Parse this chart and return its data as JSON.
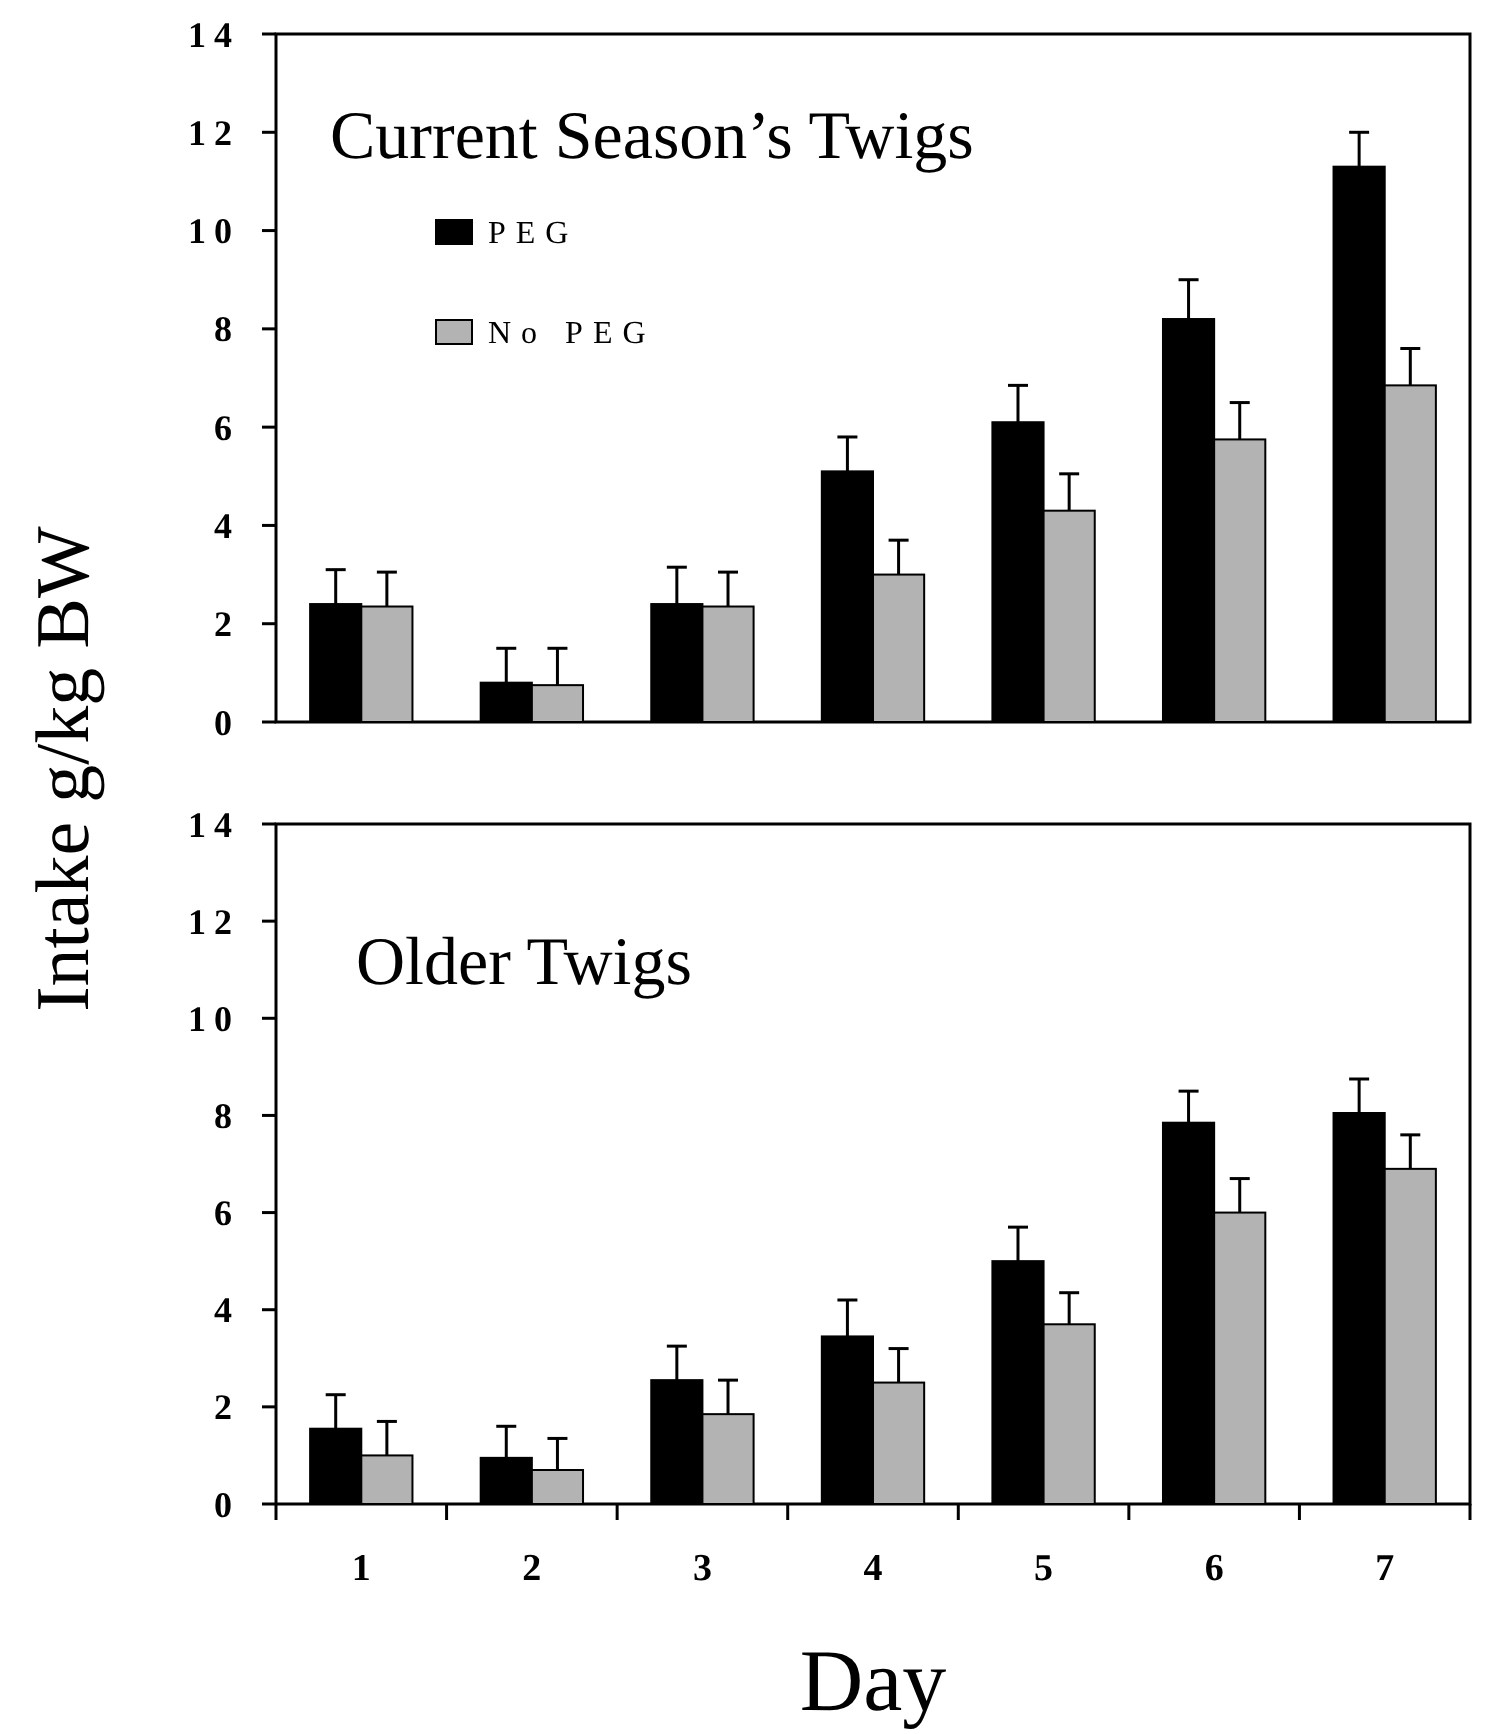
{
  "chart_data": [
    {
      "type": "bar",
      "title": "Current Season’s Twigs",
      "ylabel": "Intake g/kg BW",
      "categories": [
        null,
        null,
        null,
        null,
        null,
        null,
        null
      ],
      "ylim": [
        0,
        14
      ],
      "yticks": [
        0,
        2,
        4,
        6,
        8,
        10,
        12,
        14
      ],
      "legend": "top left",
      "tick_labels": "y",
      "grid": false,
      "series": [
        {
          "name": "PEG",
          "color": "#000000",
          "values": [
            2.4,
            0.8,
            2.4,
            5.1,
            6.1,
            8.2,
            11.3
          ],
          "errors": [
            0.7,
            0.7,
            0.75,
            0.7,
            0.75,
            0.8,
            0.7
          ]
        },
        {
          "name": "No PEG",
          "color": "#b3b3b3",
          "values": [
            2.35,
            0.75,
            2.35,
            3.0,
            4.3,
            5.75,
            6.85
          ],
          "errors": [
            0.7,
            0.75,
            0.7,
            0.7,
            0.75,
            0.75,
            0.75
          ]
        }
      ]
    },
    {
      "type": "bar",
      "title": "Older Twigs",
      "xlabel": "Day",
      "categories": [
        "1",
        "2",
        "3",
        "4",
        "5",
        "6",
        "7"
      ],
      "ylim": [
        0,
        14
      ],
      "yticks": [
        0,
        2,
        4,
        6,
        8,
        10,
        12,
        14
      ],
      "legend": false,
      "grid": false,
      "series": [
        {
          "color": "#000000",
          "values": [
            1.55,
            0.95,
            2.55,
            3.45,
            5.0,
            7.85,
            8.05
          ],
          "errors": [
            0.7,
            0.65,
            0.7,
            0.75,
            0.7,
            0.65,
            0.7
          ]
        },
        {
          "color": "#b3b3b3",
          "values": [
            1.0,
            0.7,
            1.85,
            2.5,
            3.7,
            6.0,
            6.9
          ],
          "errors": [
            0.7,
            0.65,
            0.7,
            0.7,
            0.65,
            0.7,
            0.7
          ]
        }
      ]
    }
  ]
}
